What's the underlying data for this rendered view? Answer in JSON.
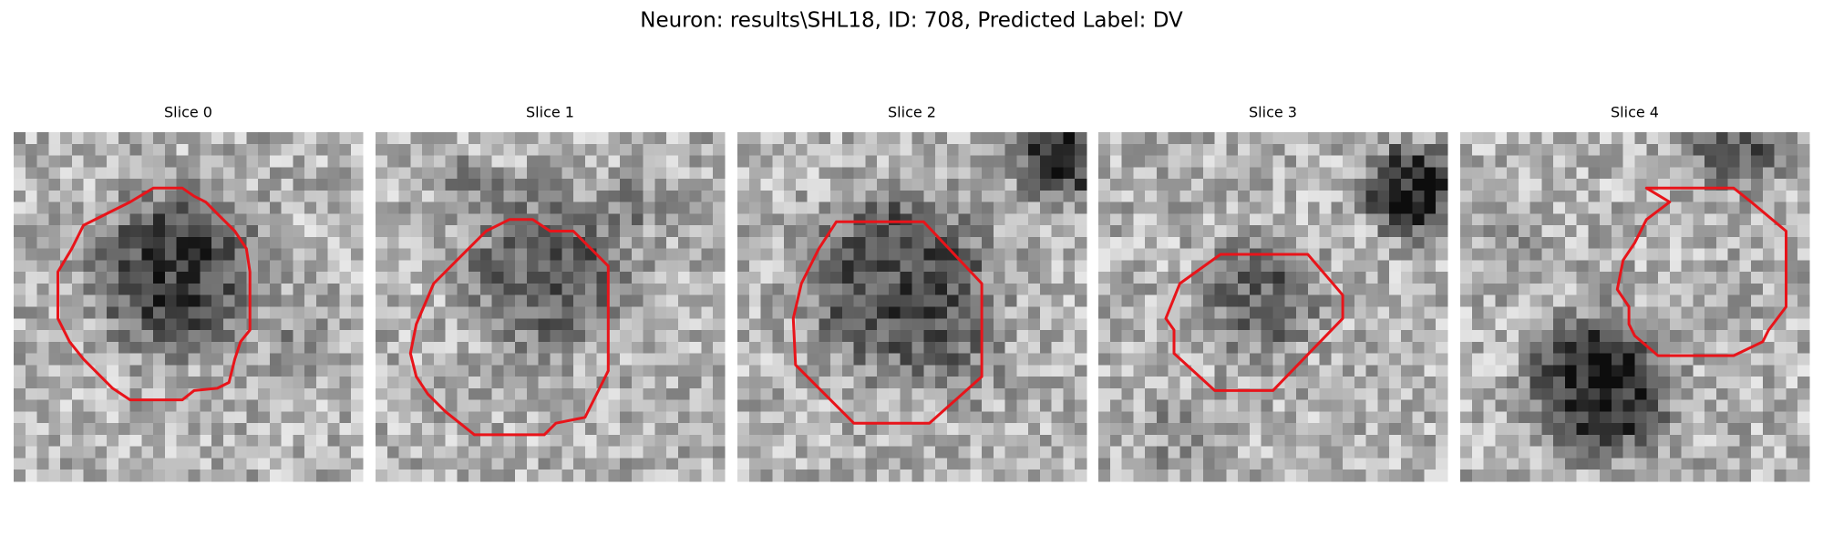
{
  "title": "Neuron: results\\SHL18, ID: 708, Predicted Label: DV",
  "panels": [
    {
      "title": "Slice 0"
    },
    {
      "title": "Slice 1"
    },
    {
      "title": "Slice 2"
    },
    {
      "title": "Slice 3"
    },
    {
      "title": "Slice 4"
    }
  ]
}
